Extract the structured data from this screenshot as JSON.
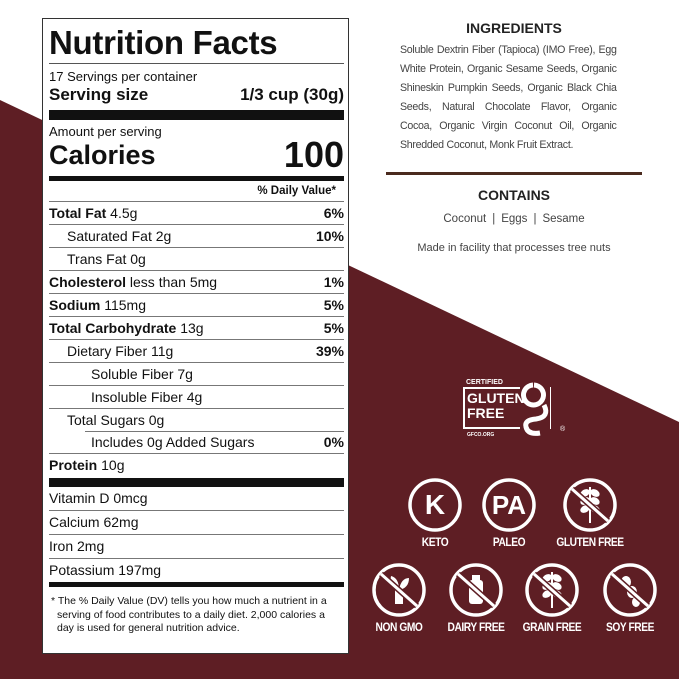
{
  "colors": {
    "background_accent": "#5e1e24",
    "label_text": "#111111",
    "divider": "#4a2a1e"
  },
  "nutrition": {
    "title": "Nutrition Facts",
    "servings_per_container": "17 Servings per container",
    "serving_size_label": "Serving size",
    "serving_size_value": "1/3 cup (30g)",
    "amount_per_serving": "Amount per serving",
    "calories_label": "Calories",
    "calories_value": "100",
    "dv_header": "% Daily Value*",
    "rows": [
      {
        "bold": "Total Fat",
        "text": " 4.5g",
        "dv": "6%",
        "indent": 0
      },
      {
        "bold": "",
        "text": "Saturated Fat 2g",
        "dv": "10%",
        "indent": 1
      },
      {
        "bold": "",
        "text": "Trans Fat 0g",
        "dv": "",
        "indent": 1
      },
      {
        "bold": "Cholesterol",
        "text": " less than 5mg",
        "dv": "1%",
        "indent": 0
      },
      {
        "bold": "Sodium",
        "text": " 115mg",
        "dv": "5%",
        "indent": 0
      },
      {
        "bold": "Total Carbohydrate",
        "text": " 13g",
        "dv": "5%",
        "indent": 0
      },
      {
        "bold": "",
        "text": "Dietary Fiber 11g",
        "dv": "39%",
        "indent": 1
      },
      {
        "bold": "",
        "text": "Soluble Fiber 7g",
        "dv": "",
        "indent": 2
      },
      {
        "bold": "",
        "text": "Insoluble Fiber 4g",
        "dv": "",
        "indent": 2
      },
      {
        "bold": "",
        "text": "Total Sugars 0g",
        "dv": "",
        "indent": 1
      },
      {
        "bold": "",
        "text": "Includes 0g Added Sugars",
        "dv": "0%",
        "indent": 2
      },
      {
        "bold": "Protein",
        "text": " 10g",
        "dv": "",
        "indent": 0
      }
    ],
    "vitamins": [
      "Vitamin D 0mcg",
      "Calcium 62mg",
      "Iron 2mg",
      "Potassium 197mg"
    ],
    "footnote": "* The % Daily Value (DV) tells you how much a nutrient in a serving of food contributes to a daily diet. 2,000 calories a day is used for general nutrition advice."
  },
  "ingredients": {
    "heading": "INGREDIENTS",
    "text": "Soluble Dextrin Fiber (Tapioca) (IMO Free), Egg White Protein, Organic Sesame Seeds, Organic Shineskin Pumpkin Seeds, Organic Black Chia Seeds, Natural Chocolate  Flavor, Organic Cocoa, Organic Virgin Coconut Oil, Organic Shredded Coconut, Monk Fruit Extract."
  },
  "contains": {
    "heading": "CONTAINS",
    "items": [
      "Coconut",
      "Eggs",
      "Sesame"
    ],
    "facility": "Made in facility that processes tree nuts"
  },
  "certification": {
    "top": "CERTIFIED",
    "line1": "GLUTEN",
    "line2": "FREE",
    "site": "GFCO.ORG",
    "icon": "gfco-g-logo"
  },
  "badges": [
    {
      "label": "KETO",
      "glyph": "K",
      "icon": "keto-icon"
    },
    {
      "label": "PALEO",
      "glyph": "PA",
      "icon": "paleo-icon"
    },
    {
      "label": "GLUTEN FREE",
      "glyph": "",
      "icon": "wheat-crossed-icon"
    },
    {
      "label": "NON GMO",
      "glyph": "",
      "icon": "sprout-crossed-icon"
    },
    {
      "label": "DAIRY FREE",
      "glyph": "",
      "icon": "milk-bottle-crossed-icon"
    },
    {
      "label": "GRAIN FREE",
      "glyph": "",
      "icon": "grain-crossed-icon"
    },
    {
      "label": "SOY FREE",
      "glyph": "",
      "icon": "soybean-crossed-icon"
    }
  ]
}
